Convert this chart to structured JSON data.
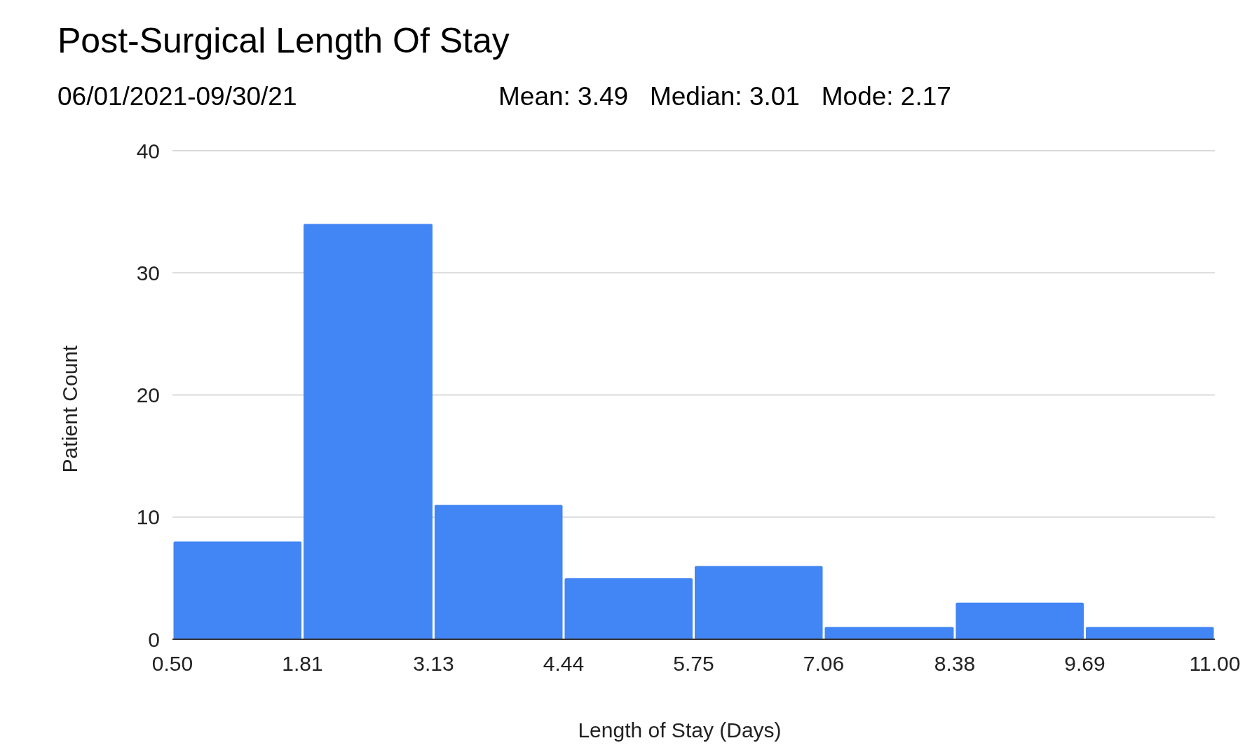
{
  "chart_data": {
    "type": "histogram",
    "title": "Post-Surgical Length Of Stay",
    "subtitle": "06/01/2021-09/30/21",
    "annotations": [
      "Mean: 3.49   Median: 3.01   Mode: 2.17"
    ],
    "xlabel": "Length of Stay (Days)",
    "ylabel": "Patient Count",
    "bins": [
      0.5,
      1.81,
      3.13,
      4.44,
      5.75,
      7.06,
      8.38,
      9.69,
      11.0
    ],
    "values": [
      8,
      34,
      11,
      5,
      6,
      1,
      3,
      1
    ],
    "color": "#4285f4",
    "xlim": [
      0.5,
      11.0
    ],
    "xticks": [
      {
        "value": 0.5,
        "label": "0.50"
      },
      {
        "value": 1.81,
        "label": "1.81"
      },
      {
        "value": 3.13,
        "label": "3.13"
      },
      {
        "value": 4.44,
        "label": "4.44"
      },
      {
        "value": 5.75,
        "label": "5.75"
      },
      {
        "value": 7.06,
        "label": "7.06"
      },
      {
        "value": 8.38,
        "label": "8.38"
      },
      {
        "value": 9.69,
        "label": "9.69"
      },
      {
        "value": 11.0,
        "label": "11.00"
      }
    ],
    "ylim": [
      0,
      40
    ],
    "yticks": [
      0,
      10,
      20,
      30,
      40
    ],
    "grid": "y"
  }
}
